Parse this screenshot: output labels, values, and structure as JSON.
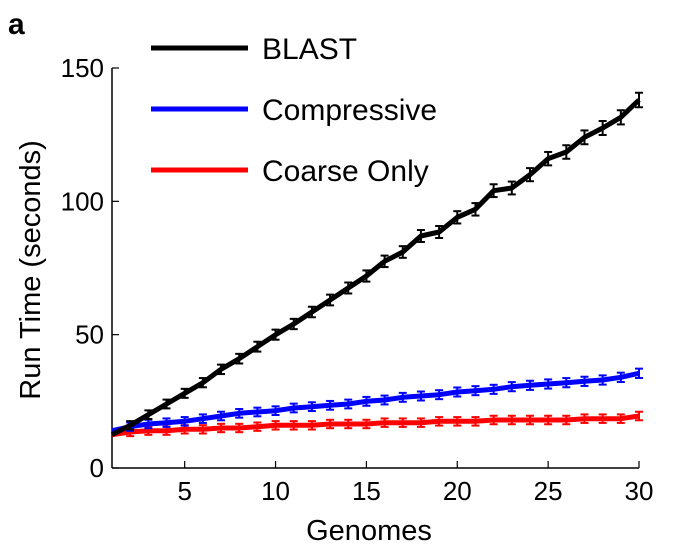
{
  "panel_label": "a",
  "chart_data": {
    "type": "line",
    "title": "",
    "xlabel": "Genomes",
    "ylabel": "Run Time (seconds)",
    "xlim": [
      1,
      30
    ],
    "ylim": [
      0,
      150
    ],
    "xticks": [
      5,
      10,
      15,
      20,
      25,
      30
    ],
    "yticks": [
      0,
      50,
      100,
      150
    ],
    "grid": false,
    "legend_position": "top-left",
    "x": [
      1,
      2,
      3,
      4,
      5,
      6,
      7,
      8,
      9,
      10,
      11,
      12,
      13,
      14,
      15,
      16,
      17,
      18,
      19,
      20,
      21,
      22,
      23,
      24,
      25,
      26,
      27,
      28,
      29,
      30
    ],
    "series": [
      {
        "name": "BLAST",
        "color": "#000000",
        "values": [
          12.5,
          16,
          20,
          24,
          28,
          32,
          37,
          41,
          45.5,
          50,
          54,
          58.5,
          63,
          67.5,
          72,
          77.5,
          81,
          87,
          88.5,
          94,
          97,
          104,
          105,
          110,
          116,
          118.5,
          124,
          127.5,
          131.5,
          138
        ]
      },
      {
        "name": "Compressive",
        "color": "#0000ff",
        "values": [
          14,
          15.5,
          16.5,
          17,
          17.5,
          18.5,
          19.5,
          20.5,
          21,
          21.5,
          22.5,
          23,
          23.5,
          24,
          25,
          25.5,
          26.5,
          27,
          27.5,
          28.5,
          29,
          29.5,
          30.5,
          31,
          31.5,
          32,
          32.5,
          33,
          34,
          35.5
        ]
      },
      {
        "name": "Coarse Only",
        "color": "#ff0000",
        "values": [
          12.5,
          13.5,
          14,
          14,
          14.5,
          14.5,
          15,
          15,
          15.5,
          16,
          16,
          16,
          16.5,
          16.5,
          16.5,
          17,
          17,
          17,
          17.5,
          17.5,
          17.5,
          18,
          18,
          18,
          18,
          18,
          18.5,
          18.5,
          18.5,
          19.5
        ]
      }
    ]
  }
}
